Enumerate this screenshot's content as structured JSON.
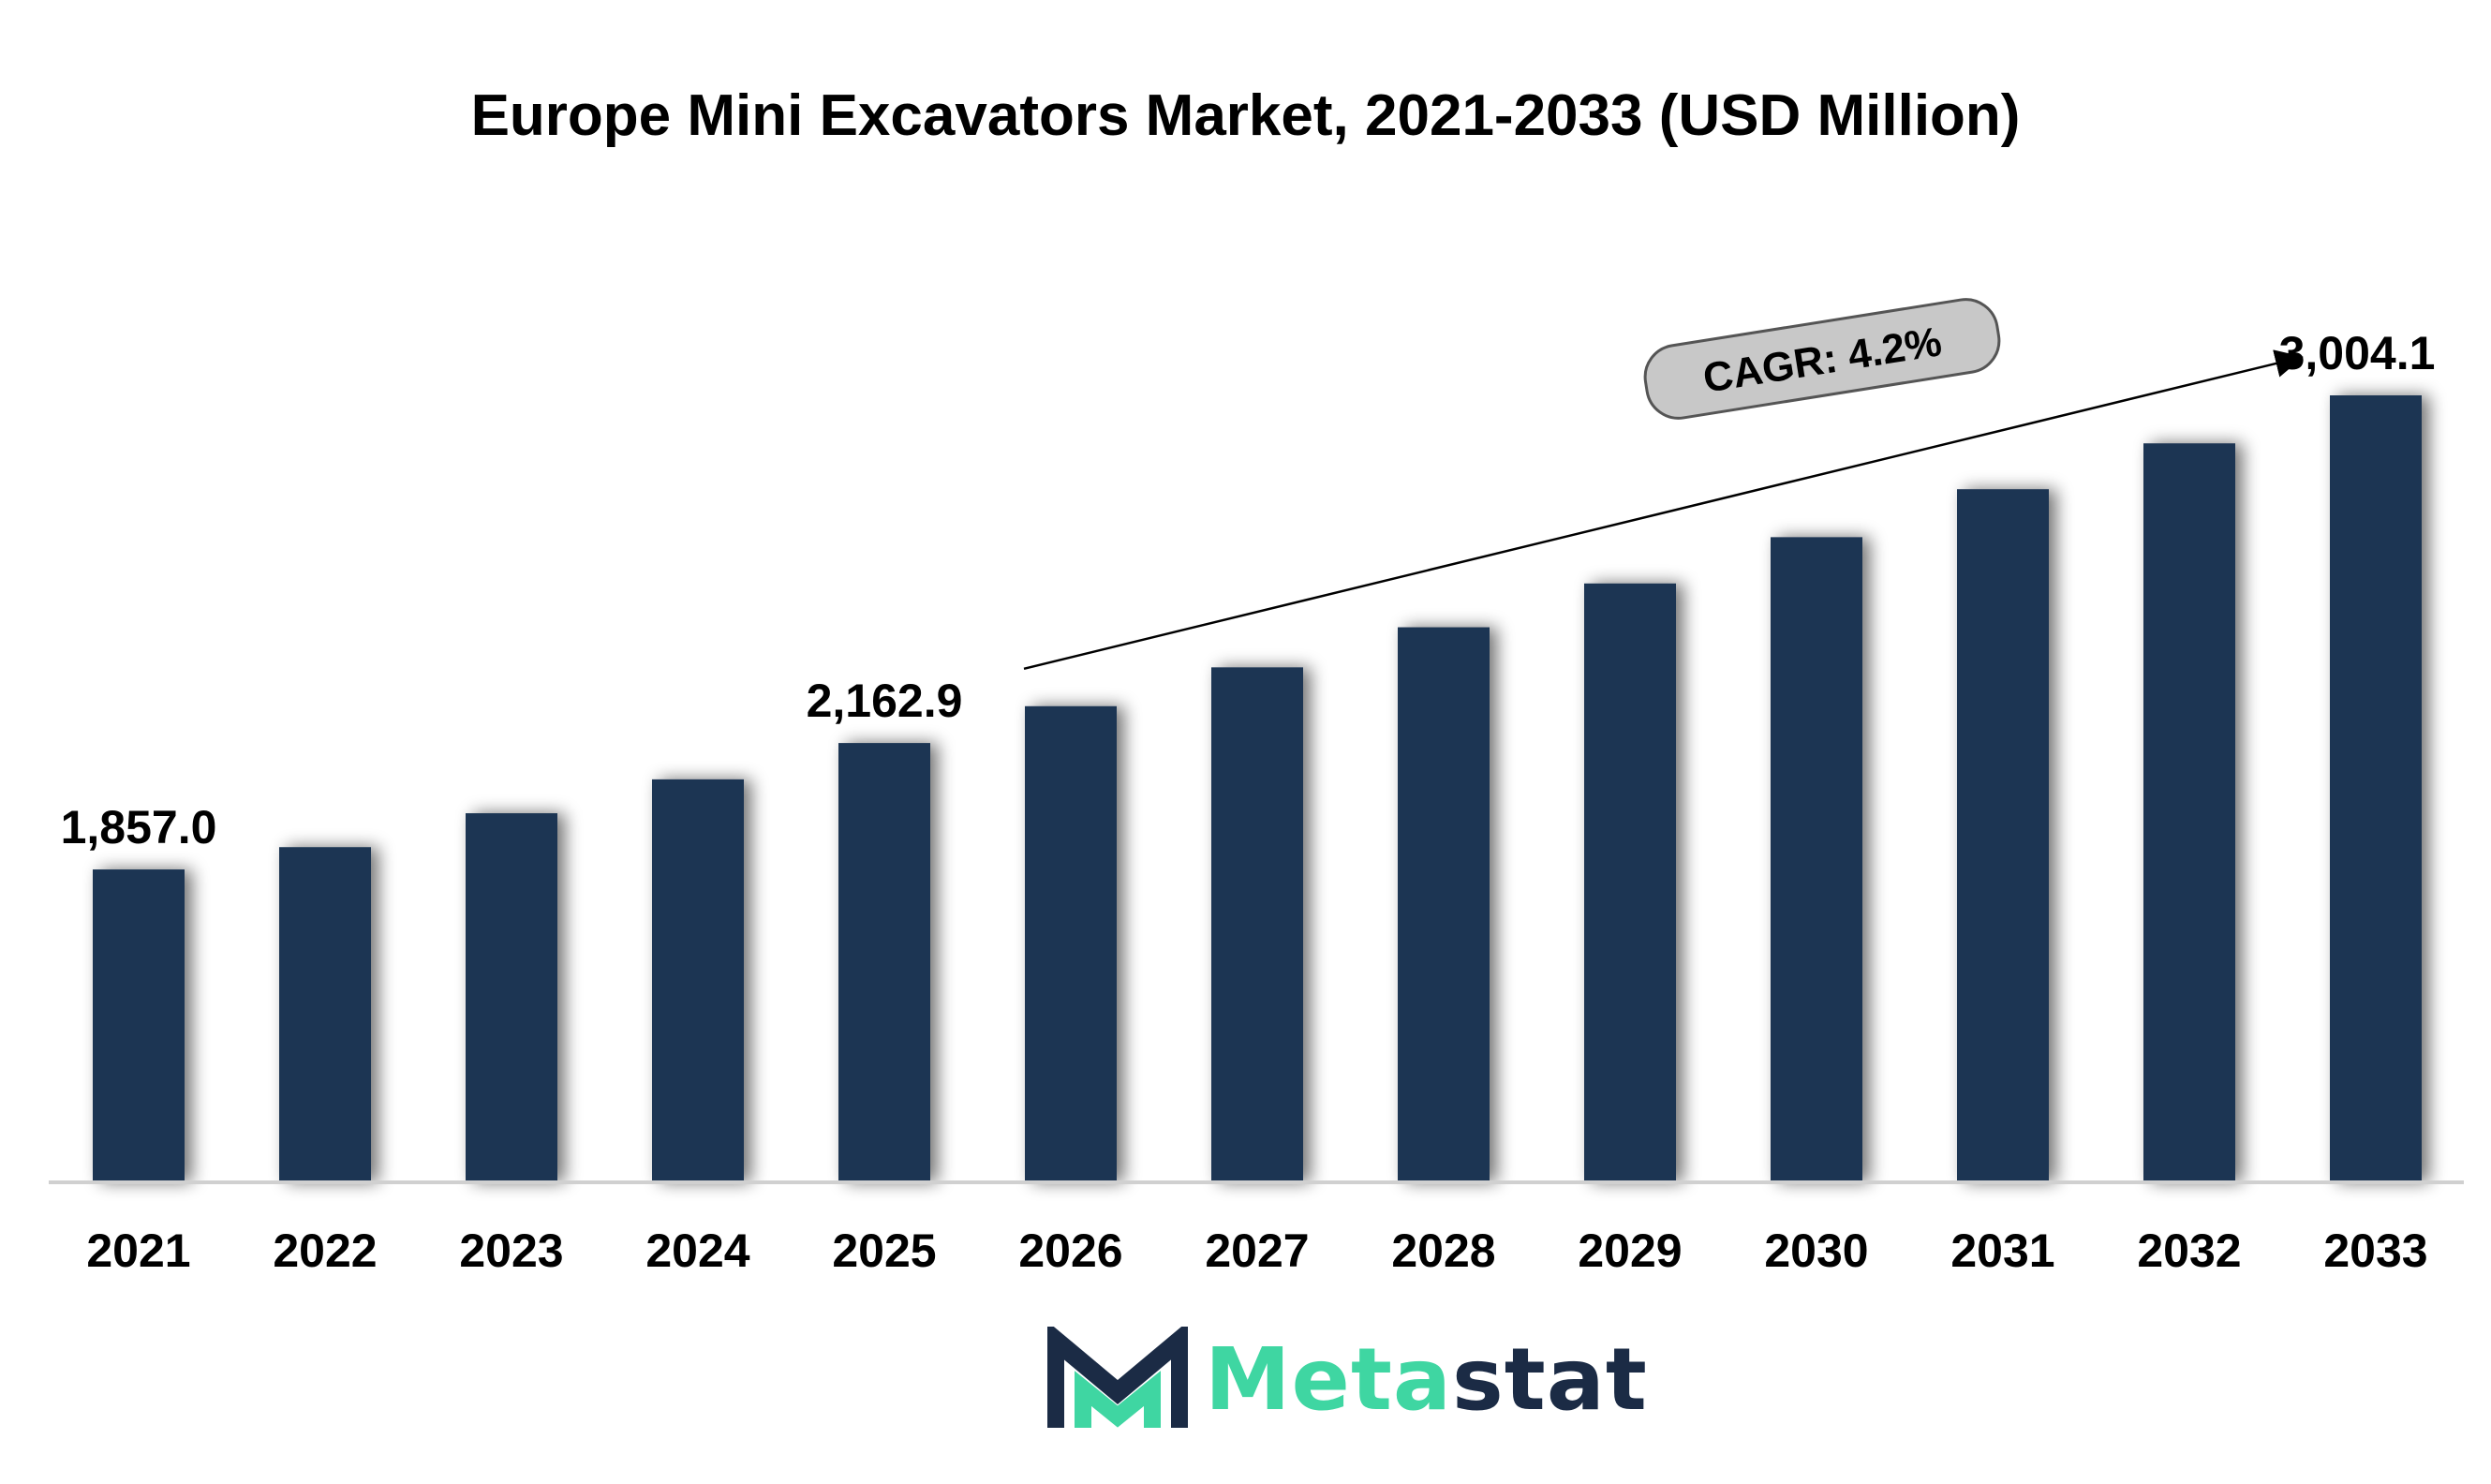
{
  "title": "Europe Mini Excavators Market, 2021-2033 (USD Million)",
  "colors": {
    "bar": "#1b3452",
    "logo_dark": "#1b2b45",
    "logo_accent": "#3fd6a2",
    "cagr_box": "#c8c8c8"
  },
  "cagr_label": "CAGR: 4.2%",
  "logo": {
    "text_accent": "Meta",
    "text_dark": "stat",
    "icon": "metastat-m-logo-icon"
  },
  "chart_data": {
    "type": "bar",
    "title": "Europe Mini Excavators Market, 2021-2033 (USD Million)",
    "xlabel": "",
    "ylabel": "",
    "categories": [
      "2021",
      "2022",
      "2023",
      "2024",
      "2025",
      "2026",
      "2027",
      "2028",
      "2029",
      "2030",
      "2031",
      "2032",
      "2033"
    ],
    "values": [
      1857.0,
      1911,
      1993,
      2075,
      2162.9,
      2252,
      2346,
      2443,
      2549,
      2661,
      2777,
      2888,
      3004.1
    ],
    "data_labels": [
      {
        "index": 0,
        "text": "1,857.0"
      },
      {
        "index": 4,
        "text": "2,162.9"
      },
      {
        "index": 12,
        "text": "3,004.1"
      }
    ],
    "ylim": [
      0,
      3004.1
    ],
    "grid": false,
    "legend": "none",
    "annotation": {
      "text": "CAGR: 4.2%",
      "from_category": "2026",
      "to_category": "2033"
    }
  }
}
